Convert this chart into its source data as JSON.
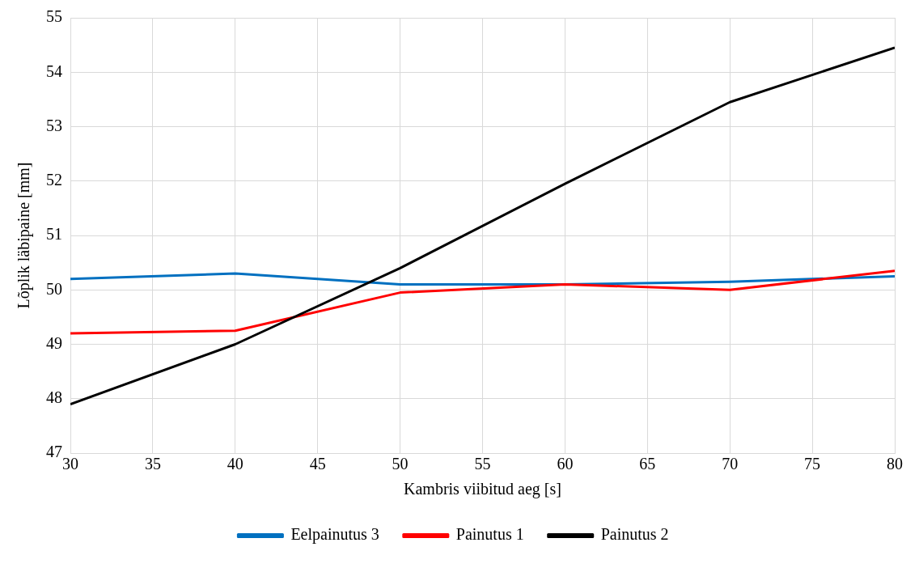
{
  "chart_data": {
    "type": "line",
    "xlabel": "Kambris viibitud aeg [s]",
    "ylabel": "Lõplik läbipaine [mm]",
    "x": [
      30,
      40,
      50,
      60,
      70,
      80
    ],
    "series": [
      {
        "name": "Eelpainutus 3",
        "color": "#0070c0",
        "values": [
          50.2,
          50.3,
          50.1,
          50.1,
          50.15,
          50.25
        ]
      },
      {
        "name": "Painutus 1",
        "color": "#ff0000",
        "values": [
          49.2,
          49.25,
          49.95,
          50.1,
          50.0,
          50.35
        ]
      },
      {
        "name": "Painutus 2",
        "color": "#000000",
        "values": [
          47.9,
          49.0,
          50.4,
          51.95,
          53.45,
          54.45
        ]
      }
    ],
    "xlim": [
      30,
      80
    ],
    "xticks": [
      30,
      35,
      40,
      45,
      50,
      55,
      60,
      65,
      70,
      75,
      80
    ],
    "ylim": [
      47,
      55
    ],
    "yticks": [
      47,
      48,
      49,
      50,
      51,
      52,
      53,
      54,
      55
    ],
    "grid": true,
    "legend": "bottom",
    "marker": "none",
    "line_style": "solid"
  }
}
